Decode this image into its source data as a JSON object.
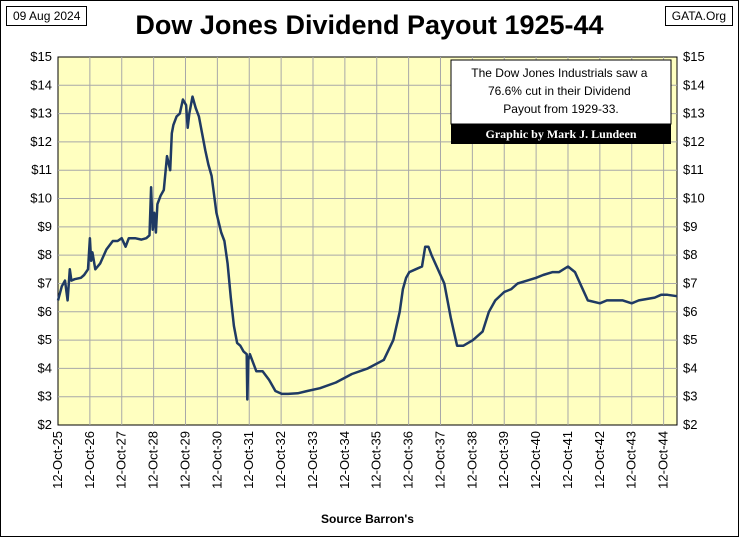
{
  "header": {
    "date": "09 Aug 2024",
    "site": "GATA.Org",
    "title": "Dow Jones Dividend Payout 1925-44"
  },
  "footer": {
    "source": "Source Barron's"
  },
  "annotation": {
    "lines": [
      "The Dow Jones Industrials saw a",
      "76.6% cut in their Dividend",
      "Payout from 1929-33."
    ],
    "credit": "Graphic by Mark J. Lundeen"
  },
  "colors": {
    "plot_bg": "#ffffc0",
    "line": "#1f3a63",
    "grid": "#a8a8a8"
  },
  "chart_data": {
    "type": "line",
    "title": "Dow Jones Dividend Payout 1925-44",
    "xlabel": "Source Barron's",
    "ylabel": "",
    "ylim": [
      2,
      15
    ],
    "yticks": [
      2,
      3,
      4,
      5,
      6,
      7,
      8,
      9,
      10,
      11,
      12,
      13,
      14,
      15
    ],
    "ytick_labels": [
      "$2",
      "$3",
      "$4",
      "$5",
      "$6",
      "$7",
      "$8",
      "$9",
      "$10",
      "$11",
      "$12",
      "$13",
      "$14",
      "$15"
    ],
    "xlim": [
      1925.78,
      1945.2
    ],
    "xticks": [
      1925.78,
      1926.78,
      1927.78,
      1928.78,
      1929.78,
      1930.78,
      1931.78,
      1932.78,
      1933.78,
      1934.78,
      1935.78,
      1936.78,
      1937.78,
      1938.78,
      1939.78,
      1940.78,
      1941.78,
      1942.78,
      1943.78,
      1944.78
    ],
    "xtick_labels": [
      "12-Oct-25",
      "12-Oct-26",
      "12-Oct-27",
      "12-Oct-28",
      "12-Oct-29",
      "12-Oct-30",
      "12-Oct-31",
      "12-Oct-32",
      "12-Oct-33",
      "12-Oct-34",
      "12-Oct-35",
      "12-Oct-36",
      "12-Oct-37",
      "12-Oct-38",
      "12-Oct-39",
      "12-Oct-40",
      "12-Oct-41",
      "12-Oct-42",
      "12-Oct-43",
      "12-Oct-44"
    ],
    "grid": true,
    "series": [
      {
        "x": [
          1925.78,
          1925.9,
          1926.0,
          1926.08,
          1926.15,
          1926.2,
          1926.3,
          1926.5,
          1926.6,
          1926.72,
          1926.78,
          1926.82,
          1926.86,
          1926.95,
          1927.1,
          1927.3,
          1927.5,
          1927.65,
          1927.78,
          1927.9,
          1928.0,
          1928.2,
          1928.4,
          1928.55,
          1928.65,
          1928.7,
          1928.75,
          1928.8,
          1928.85,
          1928.9,
          1929.0,
          1929.1,
          1929.2,
          1929.3,
          1929.35,
          1929.4,
          1929.5,
          1929.6,
          1929.7,
          1929.8,
          1929.85,
          1929.9,
          1930.0,
          1930.1,
          1930.2,
          1930.3,
          1930.4,
          1930.5,
          1930.6,
          1930.75,
          1930.9,
          1931.0,
          1931.1,
          1931.2,
          1931.3,
          1931.4,
          1931.5,
          1931.6,
          1931.7,
          1931.72,
          1931.75,
          1931.8,
          1931.9,
          1932.0,
          1932.2,
          1932.4,
          1932.6,
          1932.8,
          1933.0,
          1933.3,
          1933.6,
          1934.0,
          1934.5,
          1935.0,
          1935.5,
          1936.0,
          1936.3,
          1936.5,
          1936.6,
          1936.7,
          1936.8,
          1937.0,
          1937.2,
          1937.3,
          1937.4,
          1937.5,
          1937.7,
          1937.9,
          1938.1,
          1938.2,
          1938.3,
          1938.5,
          1938.8,
          1939.1,
          1939.3,
          1939.5,
          1939.78,
          1940.0,
          1940.2,
          1940.5,
          1940.78,
          1941.0,
          1941.3,
          1941.5,
          1941.78,
          1942.0,
          1942.2,
          1942.4,
          1942.78,
          1943.0,
          1943.3,
          1943.5,
          1943.78,
          1944.0,
          1944.5,
          1944.7,
          1944.9,
          1945.2
        ],
        "y": [
          6.4,
          6.9,
          7.1,
          6.4,
          7.5,
          7.1,
          7.15,
          7.2,
          7.3,
          7.5,
          8.6,
          7.8,
          8.1,
          7.5,
          7.7,
          8.2,
          8.5,
          8.5,
          8.6,
          8.3,
          8.6,
          8.6,
          8.55,
          8.6,
          8.7,
          10.4,
          8.9,
          9.5,
          8.8,
          9.8,
          10.1,
          10.3,
          11.5,
          11.0,
          12.3,
          12.6,
          12.9,
          13.0,
          13.5,
          13.3,
          12.5,
          13.0,
          13.6,
          13.2,
          12.9,
          12.3,
          11.7,
          11.2,
          10.8,
          9.5,
          8.8,
          8.5,
          7.7,
          6.5,
          5.5,
          4.9,
          4.8,
          4.6,
          4.5,
          2.9,
          4.3,
          4.5,
          4.2,
          3.9,
          3.9,
          3.6,
          3.2,
          3.1,
          3.1,
          3.12,
          3.2,
          3.3,
          3.5,
          3.8,
          4.0,
          4.3,
          5.0,
          6.0,
          6.8,
          7.2,
          7.4,
          7.5,
          7.6,
          8.3,
          8.3,
          8.0,
          7.5,
          7.0,
          5.8,
          5.3,
          4.8,
          4.8,
          5.0,
          5.3,
          6.0,
          6.4,
          6.7,
          6.8,
          7.0,
          7.1,
          7.2,
          7.3,
          7.4,
          7.4,
          7.6,
          7.4,
          6.9,
          6.4,
          6.3,
          6.4,
          6.4,
          6.4,
          6.3,
          6.4,
          6.5,
          6.6,
          6.6,
          6.55
        ]
      }
    ]
  }
}
